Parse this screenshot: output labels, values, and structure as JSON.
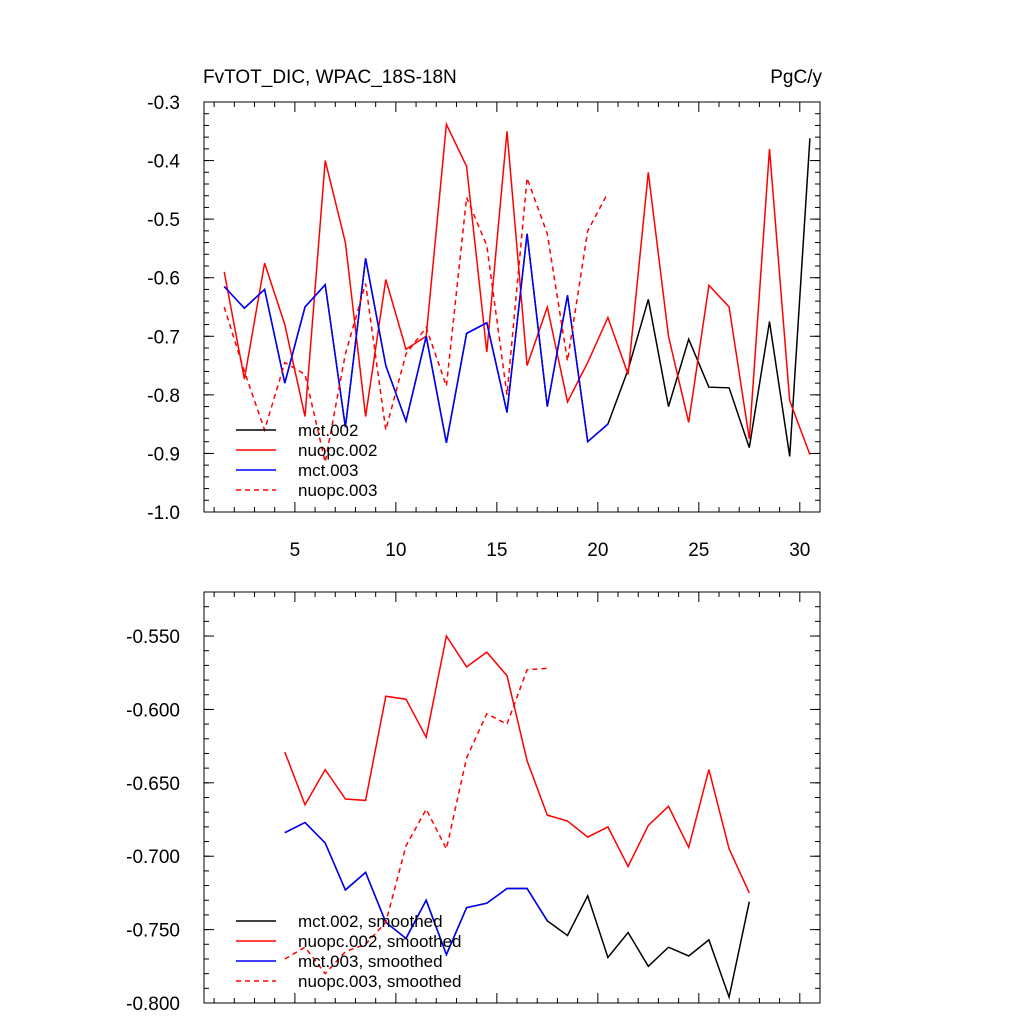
{
  "top_chart": {
    "title_left": "FvTOT_DIC, WPAC_18S-18N",
    "title_right": "PgC/y"
  },
  "chart_data": [
    {
      "type": "line",
      "title": "FvTOT_DIC, WPAC_18S-18N",
      "units": "PgC/y",
      "xlim": [
        0.5,
        31.0
      ],
      "ylim": [
        -1.0,
        -0.3
      ],
      "x_ticks": [
        5,
        10,
        15,
        20,
        25,
        30
      ],
      "x_tick_labels": [
        "5",
        "10",
        "15",
        "20",
        "25",
        "30"
      ],
      "y_ticks": [
        -0.3,
        -0.4,
        -0.5,
        -0.6,
        -0.7,
        -0.8,
        -0.9,
        -1.0
      ],
      "y_tick_labels": [
        "-0.3",
        "-0.4",
        "-0.5",
        "-0.6",
        "-0.7",
        "-0.8",
        "-0.9",
        "-1.0"
      ],
      "legend_position": "bottom-left",
      "series": [
        {
          "name": "mct.002",
          "color": "#000000",
          "dash": "solid",
          "x": [
            1.5,
            2.5,
            3.5,
            4.5,
            5.5,
            6.5,
            7.5,
            8.5,
            9.5,
            10.5,
            11.5,
            12.5,
            13.5,
            14.5,
            15.5,
            16.5,
            17.5,
            18.5,
            19.5,
            20.5,
            21.5,
            22.5,
            23.5,
            24.5,
            25.5,
            26.5,
            27.5,
            28.5,
            29.5,
            30.5
          ],
          "values": [
            -0.615,
            -0.652,
            -0.62,
            -0.78,
            -0.65,
            -0.612,
            -0.855,
            -0.567,
            -0.75,
            -0.845,
            -0.7,
            -0.882,
            -0.695,
            -0.677,
            -0.83,
            -0.525,
            -0.82,
            -0.63,
            -0.88,
            -0.85,
            -0.757,
            -0.637,
            -0.82,
            -0.705,
            -0.787,
            -0.788,
            -0.89,
            -0.675,
            -0.905,
            -0.362
          ]
        },
        {
          "name": "nuopc.002",
          "color": "#ff0000",
          "dash": "solid",
          "x": [
            1.5,
            2.5,
            3.5,
            4.5,
            5.5,
            6.5,
            7.5,
            8.5,
            9.5,
            10.5,
            11.5,
            12.5,
            13.5,
            14.5,
            15.5,
            16.5,
            17.5,
            18.5,
            19.5,
            20.5,
            21.5,
            22.5,
            23.5,
            24.5,
            25.5,
            26.5,
            27.5,
            28.5,
            29.5,
            30.5
          ],
          "values": [
            -0.59,
            -0.773,
            -0.575,
            -0.68,
            -0.837,
            -0.4,
            -0.54,
            -0.837,
            -0.603,
            -0.722,
            -0.7,
            -0.338,
            -0.41,
            -0.727,
            -0.35,
            -0.75,
            -0.65,
            -0.812,
            -0.745,
            -0.668,
            -0.765,
            -0.42,
            -0.7,
            -0.847,
            -0.613,
            -0.65,
            -0.875,
            -0.38,
            -0.81,
            -0.902
          ]
        },
        {
          "name": "mct.003",
          "color": "#0000ff",
          "dash": "solid",
          "x": [
            1.5,
            2.5,
            3.5,
            4.5,
            5.5,
            6.5,
            7.5,
            8.5,
            9.5,
            10.5,
            11.5,
            12.5,
            13.5,
            14.5,
            15.5,
            16.5,
            17.5,
            18.5,
            19.5,
            20.5
          ],
          "values": [
            -0.615,
            -0.652,
            -0.62,
            -0.78,
            -0.65,
            -0.612,
            -0.855,
            -0.567,
            -0.75,
            -0.845,
            -0.7,
            -0.882,
            -0.695,
            -0.677,
            -0.83,
            -0.525,
            -0.82,
            -0.63,
            -0.88,
            -0.85
          ]
        },
        {
          "name": "nuopc.003",
          "color": "#ff0000",
          "dash": "dashed",
          "x": [
            1.5,
            2.5,
            3.5,
            4.5,
            5.5,
            6.5,
            7.5,
            8.5,
            9.5,
            10.5,
            11.5,
            12.5,
            13.5,
            14.5,
            15.5,
            16.5,
            17.5,
            18.5,
            19.5,
            20.5
          ],
          "values": [
            -0.65,
            -0.76,
            -0.86,
            -0.745,
            -0.765,
            -0.915,
            -0.73,
            -0.61,
            -0.86,
            -0.73,
            -0.685,
            -0.785,
            -0.463,
            -0.545,
            -0.8,
            -0.43,
            -0.525,
            -0.742,
            -0.52,
            -0.455
          ]
        }
      ]
    },
    {
      "type": "line",
      "xlim": [
        0.5,
        31.0
      ],
      "ylim": [
        -0.8,
        -0.52
      ],
      "x_ticks": [
        5,
        10,
        15,
        20,
        25,
        30
      ],
      "y_ticks": [
        -0.55,
        -0.6,
        -0.65,
        -0.7,
        -0.75,
        -0.8
      ],
      "y_tick_labels": [
        "-0.550",
        "-0.600",
        "-0.650",
        "-0.700",
        "-0.750",
        "-0.800"
      ],
      "legend_position": "bottom-left",
      "series": [
        {
          "name": "mct.002, smoothed",
          "color": "#000000",
          "dash": "solid",
          "x": [
            4.5,
            5.5,
            6.5,
            7.5,
            8.5,
            9.5,
            10.5,
            11.5,
            12.5,
            13.5,
            14.5,
            15.5,
            16.5,
            17.5,
            18.5,
            19.5,
            20.5,
            21.5,
            22.5,
            23.5,
            24.5,
            25.5,
            26.5,
            27.5
          ],
          "values": [
            -0.684,
            -0.677,
            -0.691,
            -0.723,
            -0.711,
            -0.745,
            -0.756,
            -0.73,
            -0.767,
            -0.735,
            -0.732,
            -0.722,
            -0.722,
            -0.744,
            -0.754,
            -0.727,
            -0.769,
            -0.752,
            -0.775,
            -0.762,
            -0.768,
            -0.757,
            -0.796,
            -0.731
          ]
        },
        {
          "name": "nuopc.002, smoothed",
          "color": "#ff0000",
          "dash": "solid",
          "x": [
            4.5,
            5.5,
            6.5,
            7.5,
            8.5,
            9.5,
            10.5,
            11.5,
            12.5,
            13.5,
            14.5,
            15.5,
            16.5,
            17.5,
            18.5,
            19.5,
            20.5,
            21.5,
            22.5,
            23.5,
            24.5,
            25.5,
            26.5,
            27.5
          ],
          "values": [
            -0.629,
            -0.665,
            -0.641,
            -0.661,
            -0.662,
            -0.591,
            -0.593,
            -0.619,
            -0.55,
            -0.571,
            -0.561,
            -0.577,
            -0.635,
            -0.672,
            -0.676,
            -0.687,
            -0.68,
            -0.707,
            -0.679,
            -0.666,
            -0.694,
            -0.641,
            -0.695,
            -0.725
          ]
        },
        {
          "name": "mct.003, smoothed",
          "color": "#0000ff",
          "dash": "solid",
          "x": [
            4.5,
            5.5,
            6.5,
            7.5,
            8.5,
            9.5,
            10.5,
            11.5,
            12.5,
            13.5,
            14.5,
            15.5,
            16.5,
            17.5
          ],
          "values": [
            -0.684,
            -0.677,
            -0.691,
            -0.723,
            -0.711,
            -0.745,
            -0.756,
            -0.73,
            -0.767,
            -0.735,
            -0.732,
            -0.722,
            -0.722,
            -0.744
          ]
        },
        {
          "name": "nuopc.003, smoothed",
          "color": "#ff0000",
          "dash": "dashed",
          "x": [
            4.5,
            5.5,
            6.5,
            7.5,
            8.5,
            9.5,
            10.5,
            11.5,
            12.5,
            13.5,
            14.5,
            15.5,
            16.5,
            17.5
          ],
          "values": [
            -0.77,
            -0.762,
            -0.78,
            -0.765,
            -0.76,
            -0.745,
            -0.693,
            -0.668,
            -0.695,
            -0.633,
            -0.603,
            -0.61,
            -0.573,
            -0.572
          ]
        }
      ]
    }
  ]
}
